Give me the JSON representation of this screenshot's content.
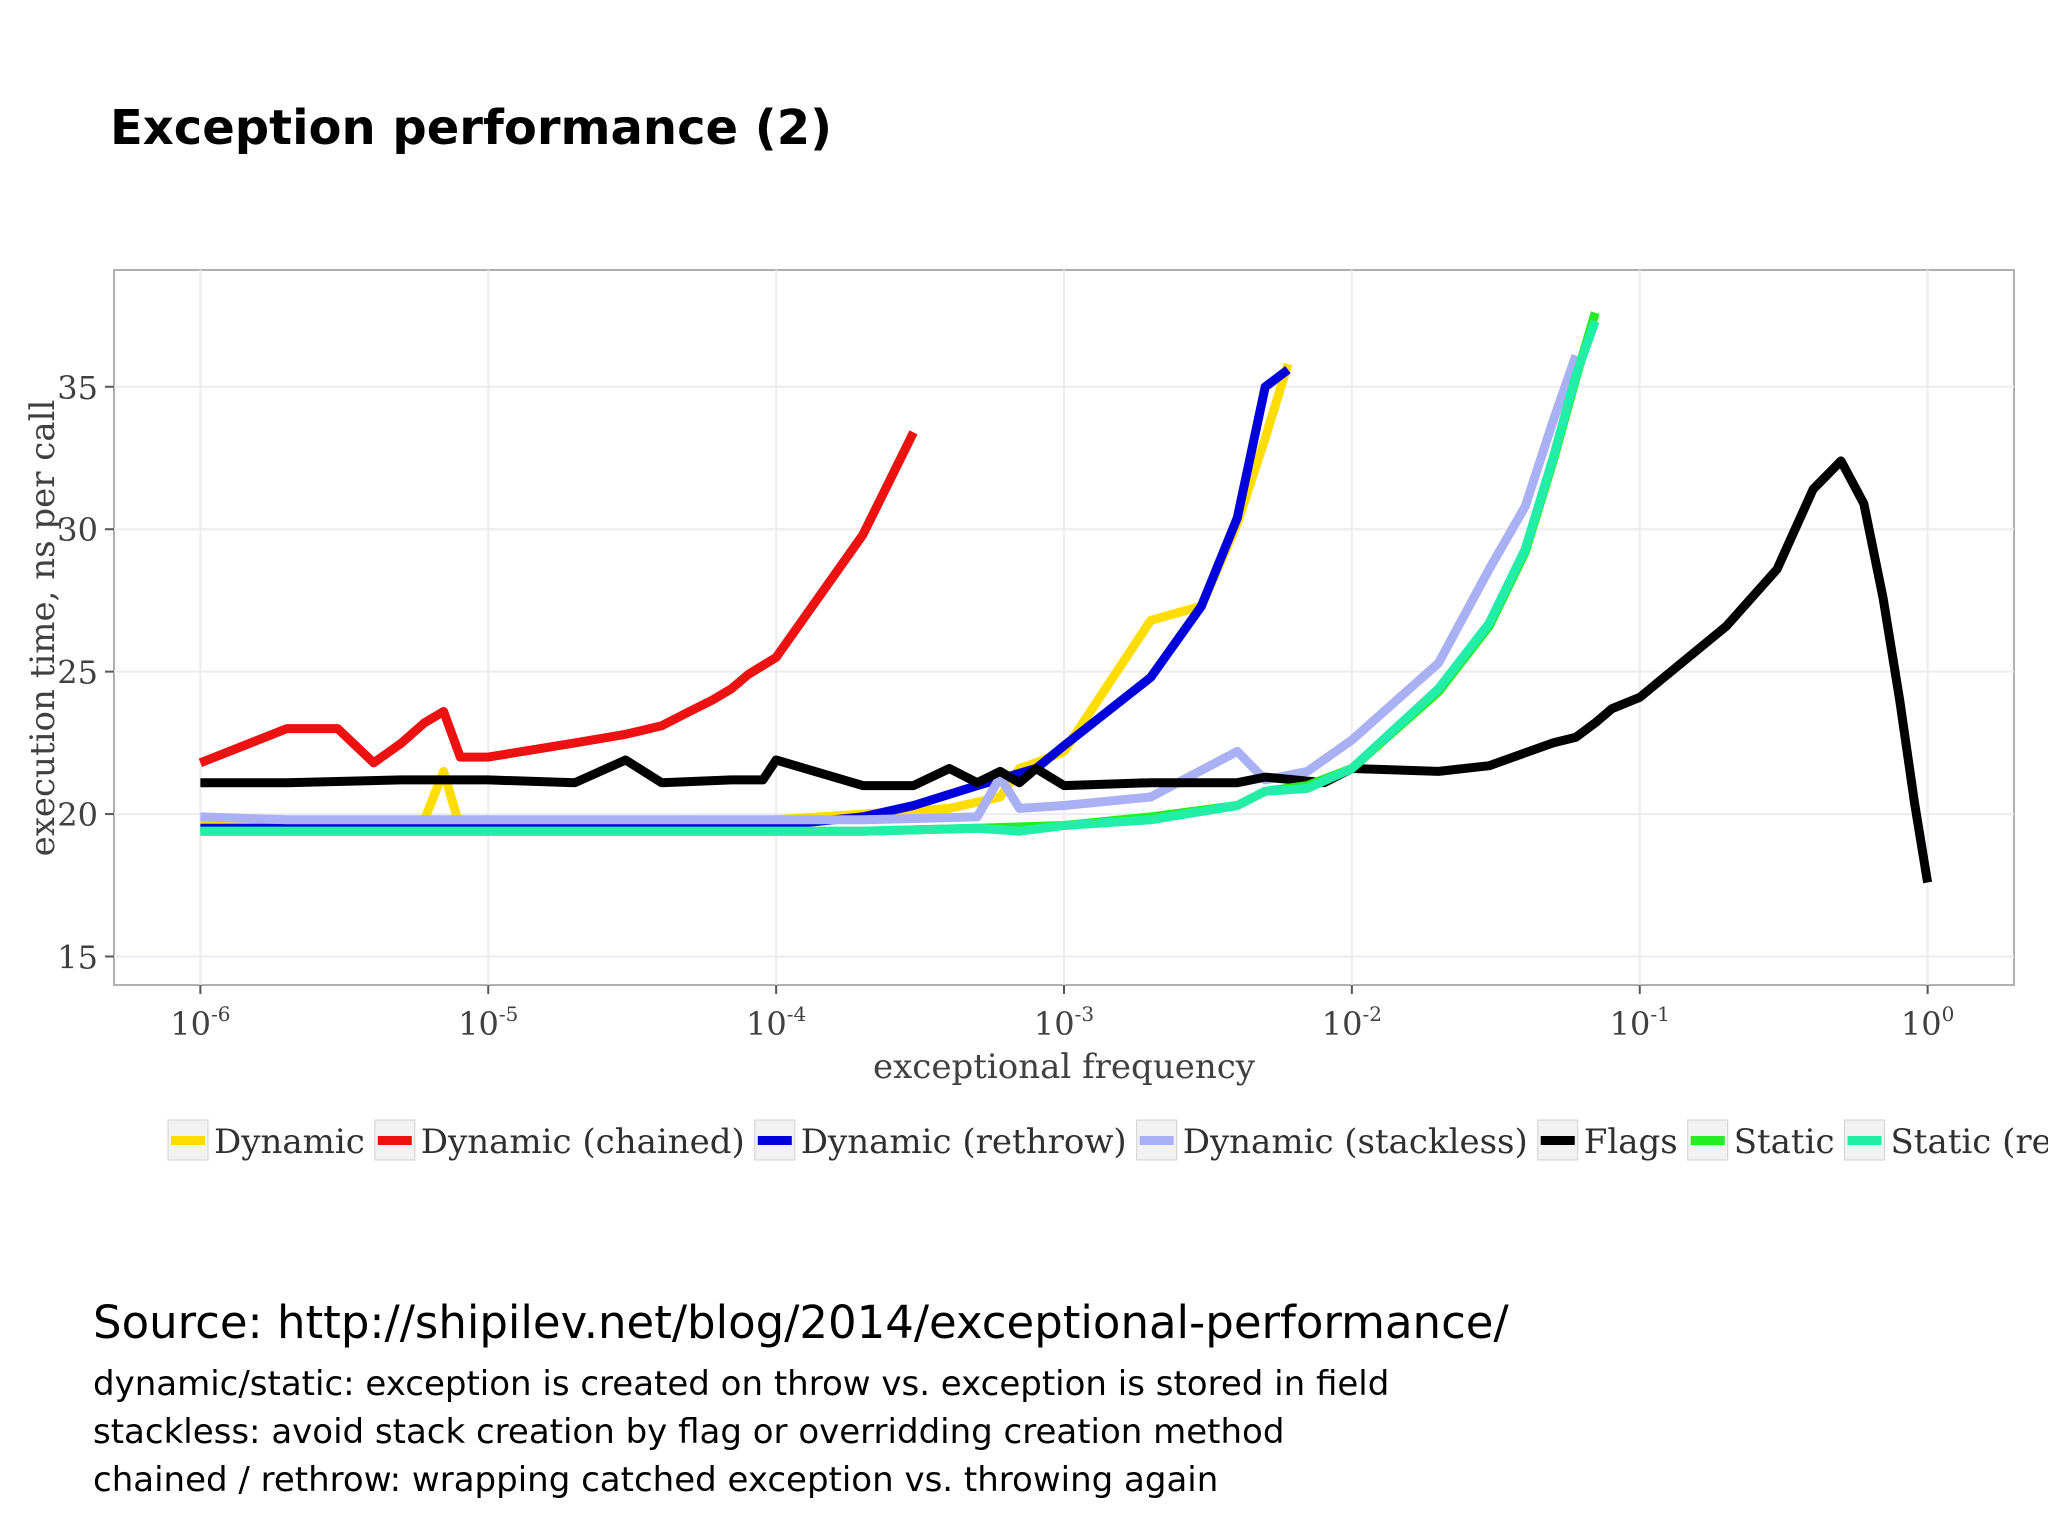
{
  "slide": {
    "title": "Exception performance (2)",
    "source": "Source: http://shipilev.net/blog/2014/exceptional-performance/",
    "notes": [
      "dynamic/static: exception is created on throw vs. exception is stored in field",
      "stackless: avoid stack creation by flag or overridding creation method",
      "chained / rethrow: wrapping catched exception vs. throwing again"
    ]
  },
  "chart_data": {
    "type": "line",
    "title": "",
    "xlabel": "exceptional frequency",
    "ylabel": "execution time, ns per call",
    "xscale": "log10",
    "xlim_log10": [
      -6.3,
      0.3
    ],
    "ylim": [
      14.0,
      39.1
    ],
    "x_ticks": [
      {
        "base": "10",
        "exp": "-6",
        "value": 1e-06
      },
      {
        "base": "10",
        "exp": "-5",
        "value": 1e-05
      },
      {
        "base": "10",
        "exp": "-4",
        "value": 0.0001
      },
      {
        "base": "10",
        "exp": "-3",
        "value": 0.001
      },
      {
        "base": "10",
        "exp": "-2",
        "value": 0.01
      },
      {
        "base": "10",
        "exp": "-1",
        "value": 0.1
      },
      {
        "base": "10",
        "exp": "0",
        "value": 1
      }
    ],
    "y_ticks": [
      15,
      20,
      25,
      30,
      35
    ],
    "grid": true,
    "legend_position": "bottom",
    "series": [
      {
        "name": "Dynamic",
        "color": "#ffdd00",
        "points": [
          [
            1e-06,
            19.6
          ],
          [
            2e-06,
            19.5
          ],
          [
            5e-06,
            19.6
          ],
          [
            6e-06,
            19.8
          ],
          [
            7e-06,
            21.5
          ],
          [
            8e-06,
            19.5
          ],
          [
            1e-05,
            19.7
          ],
          [
            2e-05,
            19.7
          ],
          [
            5e-05,
            19.8
          ],
          [
            7e-05,
            19.7
          ],
          [
            0.0001,
            19.8
          ],
          [
            0.0002,
            20.0
          ],
          [
            0.0004,
            20.2
          ],
          [
            0.0006,
            20.6
          ],
          [
            0.0007,
            21.6
          ],
          [
            0.0008,
            21.8
          ],
          [
            0.001,
            22.2
          ],
          [
            0.002,
            26.8
          ],
          [
            0.003,
            27.3
          ],
          [
            0.004,
            30.2
          ],
          [
            0.005,
            33.2
          ],
          [
            0.006,
            35.8
          ]
        ]
      },
      {
        "name": "Dynamic (chained)",
        "color": "#ee1111",
        "points": [
          [
            1e-06,
            21.8
          ],
          [
            2e-06,
            23.0
          ],
          [
            3e-06,
            23.0
          ],
          [
            4e-06,
            21.8
          ],
          [
            5e-06,
            22.5
          ],
          [
            6e-06,
            23.2
          ],
          [
            7e-06,
            23.6
          ],
          [
            8e-06,
            22.0
          ],
          [
            1e-05,
            22.0
          ],
          [
            2e-05,
            22.5
          ],
          [
            3e-05,
            22.8
          ],
          [
            4e-05,
            23.1
          ],
          [
            5e-05,
            23.6
          ],
          [
            6e-05,
            24.0
          ],
          [
            7e-05,
            24.4
          ],
          [
            8e-05,
            24.9
          ],
          [
            0.0001,
            25.5
          ],
          [
            0.0002,
            29.8
          ],
          [
            0.0003,
            33.4
          ]
        ]
      },
      {
        "name": "Dynamic (rethrow)",
        "color": "#0000dd",
        "points": [
          [
            1e-06,
            19.5
          ],
          [
            2e-06,
            19.5
          ],
          [
            5e-06,
            19.5
          ],
          [
            1e-05,
            19.5
          ],
          [
            2e-05,
            19.5
          ],
          [
            5e-05,
            19.5
          ],
          [
            0.0001,
            19.6
          ],
          [
            0.0002,
            19.9
          ],
          [
            0.0003,
            20.3
          ],
          [
            0.0005,
            21.0
          ],
          [
            0.0008,
            21.6
          ],
          [
            0.001,
            22.4
          ],
          [
            0.002,
            24.8
          ],
          [
            0.003,
            27.3
          ],
          [
            0.004,
            30.4
          ],
          [
            0.005,
            35.0
          ],
          [
            0.006,
            35.6
          ]
        ]
      },
      {
        "name": "Dynamic (stackless)",
        "color": "#aab0f4",
        "points": [
          [
            1e-06,
            19.9
          ],
          [
            2e-06,
            19.8
          ],
          [
            5e-06,
            19.8
          ],
          [
            1e-05,
            19.8
          ],
          [
            2e-05,
            19.8
          ],
          [
            5e-05,
            19.8
          ],
          [
            0.0001,
            19.8
          ],
          [
            0.0002,
            19.8
          ],
          [
            0.0005,
            19.9
          ],
          [
            0.0006,
            21.3
          ],
          [
            0.0007,
            20.2
          ],
          [
            0.001,
            20.3
          ],
          [
            0.002,
            20.6
          ],
          [
            0.004,
            22.2
          ],
          [
            0.005,
            21.2
          ],
          [
            0.007,
            21.5
          ],
          [
            0.01,
            22.6
          ],
          [
            0.02,
            25.3
          ],
          [
            0.03,
            28.6
          ],
          [
            0.04,
            30.8
          ],
          [
            0.05,
            33.8
          ],
          [
            0.06,
            36.1
          ]
        ]
      },
      {
        "name": "Flags",
        "color": "#000000",
        "points": [
          [
            1e-06,
            21.1
          ],
          [
            2e-06,
            21.1
          ],
          [
            5e-06,
            21.2
          ],
          [
            7e-06,
            21.2
          ],
          [
            1e-05,
            21.2
          ],
          [
            2e-05,
            21.1
          ],
          [
            3e-05,
            21.9
          ],
          [
            4e-05,
            21.1
          ],
          [
            7e-05,
            21.2
          ],
          [
            9e-05,
            21.2
          ],
          [
            0.0001,
            21.9
          ],
          [
            0.0002,
            21.0
          ],
          [
            0.0003,
            21.0
          ],
          [
            0.0004,
            21.6
          ],
          [
            0.0005,
            21.1
          ],
          [
            0.0006,
            21.5
          ],
          [
            0.0007,
            21.1
          ],
          [
            0.0008,
            21.6
          ],
          [
            0.001,
            21.0
          ],
          [
            0.002,
            21.1
          ],
          [
            0.004,
            21.1
          ],
          [
            0.005,
            21.3
          ],
          [
            0.008,
            21.1
          ],
          [
            0.01,
            21.6
          ],
          [
            0.02,
            21.5
          ],
          [
            0.03,
            21.7
          ],
          [
            0.05,
            22.5
          ],
          [
            0.06,
            22.7
          ],
          [
            0.07,
            23.2
          ],
          [
            0.08,
            23.7
          ],
          [
            0.1,
            24.1
          ],
          [
            0.2,
            26.6
          ],
          [
            0.3,
            28.6
          ],
          [
            0.4,
            31.4
          ],
          [
            0.5,
            32.4
          ],
          [
            0.6,
            30.9
          ],
          [
            0.7,
            27.6
          ],
          [
            0.8,
            24.0
          ],
          [
            0.9,
            20.4
          ],
          [
            1.0,
            17.6
          ]
        ]
      },
      {
        "name": "Static",
        "color": "#22ee22",
        "points": [
          [
            1e-06,
            19.4
          ],
          [
            5e-06,
            19.4
          ],
          [
            1e-05,
            19.4
          ],
          [
            5e-05,
            19.4
          ],
          [
            0.0001,
            19.4
          ],
          [
            0.0002,
            19.4
          ],
          [
            0.0005,
            19.5
          ],
          [
            0.001,
            19.6
          ],
          [
            0.002,
            19.9
          ],
          [
            0.004,
            20.3
          ],
          [
            0.005,
            20.8
          ],
          [
            0.007,
            21.0
          ],
          [
            0.01,
            21.6
          ],
          [
            0.02,
            24.3
          ],
          [
            0.03,
            26.6
          ],
          [
            0.04,
            29.2
          ],
          [
            0.05,
            32.4
          ],
          [
            0.06,
            35.3
          ],
          [
            0.07,
            37.6
          ]
        ]
      },
      {
        "name": "Static (rethrow)",
        "color": "#22eea8",
        "points": [
          [
            1e-06,
            19.4
          ],
          [
            2e-06,
            19.4
          ],
          [
            5e-06,
            19.4
          ],
          [
            1e-05,
            19.4
          ],
          [
            2e-05,
            19.4
          ],
          [
            5e-05,
            19.4
          ],
          [
            0.0001,
            19.4
          ],
          [
            0.0002,
            19.4
          ],
          [
            0.0005,
            19.5
          ],
          [
            0.0007,
            19.4
          ],
          [
            0.001,
            19.6
          ],
          [
            0.002,
            19.8
          ],
          [
            0.004,
            20.3
          ],
          [
            0.005,
            20.8
          ],
          [
            0.007,
            20.9
          ],
          [
            0.01,
            21.6
          ],
          [
            0.02,
            24.4
          ],
          [
            0.03,
            26.7
          ],
          [
            0.04,
            29.3
          ],
          [
            0.05,
            32.5
          ],
          [
            0.06,
            35.4
          ],
          [
            0.07,
            37.3
          ]
        ]
      }
    ]
  }
}
